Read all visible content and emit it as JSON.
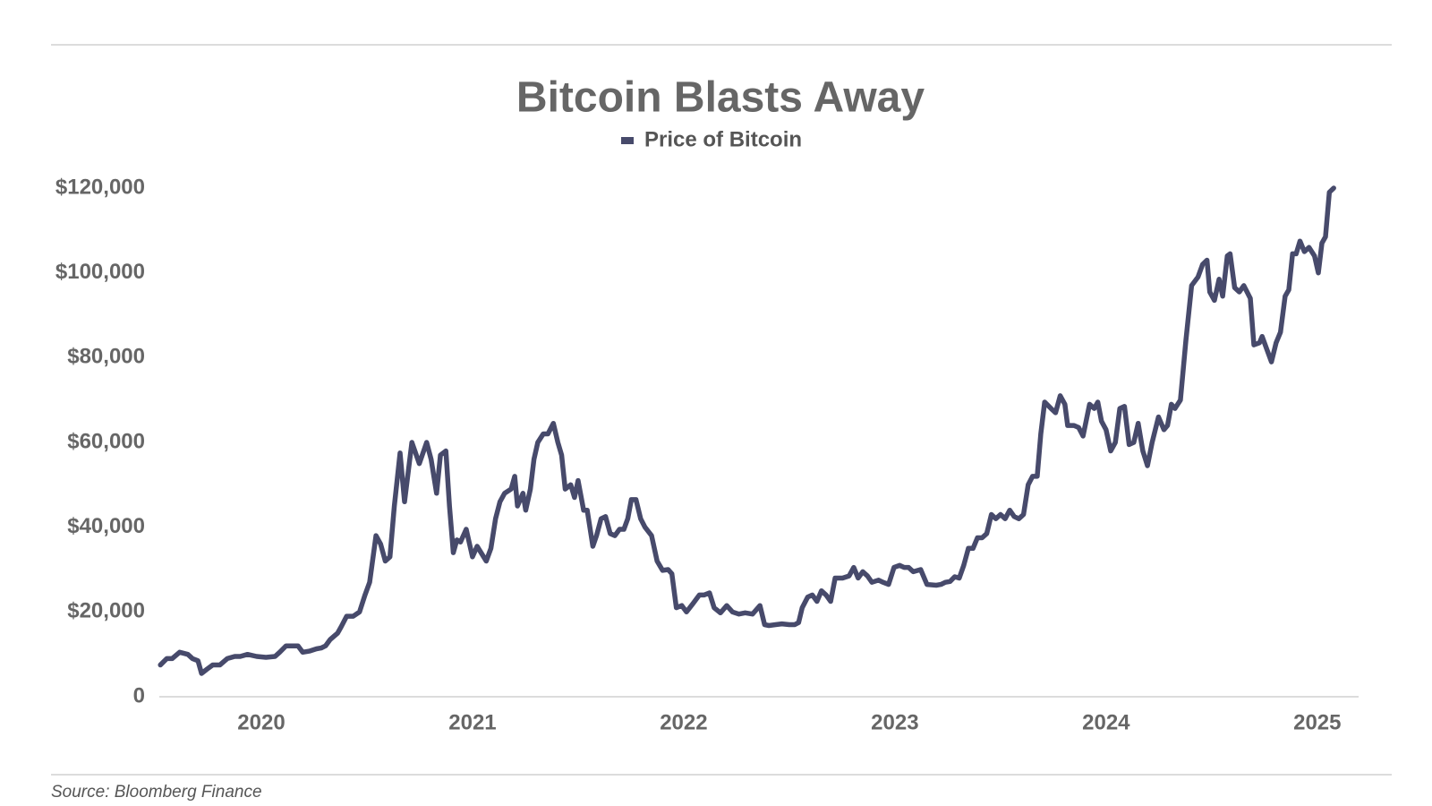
{
  "chart_data": {
    "type": "line",
    "title": "Bitcoin Blasts Away",
    "source": "Source: Bloomberg Finance",
    "x": [
      2020.022,
      2020.052,
      2020.078,
      2020.113,
      2020.152,
      2020.174,
      2020.2,
      2020.217,
      2020.243,
      2020.27,
      2020.304,
      2020.339,
      2020.374,
      2020.4,
      2020.435,
      2020.478,
      2020.522,
      2020.565,
      2020.587,
      2020.617,
      2020.674,
      2020.696,
      2020.73,
      2020.761,
      2020.783,
      2020.804,
      2020.826,
      2020.861,
      2020.878,
      2020.904,
      2020.935,
      2020.965,
      2020.991,
      2021.013,
      2021.043,
      2021.065,
      2021.087,
      2021.109,
      2021.13,
      2021.157,
      2021.178,
      2021.213,
      2021.248,
      2021.283,
      2021.304,
      2021.33,
      2021.348,
      2021.374,
      2021.391,
      2021.409,
      2021.426,
      2021.443,
      2021.47,
      2021.5,
      2021.522,
      2021.565,
      2021.587,
      2021.609,
      2021.63,
      2021.652,
      2021.683,
      2021.7,
      2021.713,
      2021.739,
      2021.752,
      2021.774,
      2021.791,
      2021.809,
      2021.835,
      2021.857,
      2021.883,
      2021.904,
      2021.922,
      2021.939,
      2021.965,
      2021.983,
      2022.0,
      2022.026,
      2022.043,
      2022.07,
      2022.087,
      2022.109,
      2022.13,
      2022.152,
      2022.174,
      2022.196,
      2022.217,
      2022.235,
      2022.252,
      2022.274,
      2022.296,
      2022.317,
      2022.348,
      2022.374,
      2022.4,
      2022.426,
      2022.444,
      2022.465,
      2022.491,
      2022.513,
      2022.544,
      2022.574,
      2022.596,
      2022.622,
      2022.644,
      2022.674,
      2022.704,
      2022.731,
      2022.761,
      2022.791,
      2022.826,
      2022.861,
      2022.883,
      2022.904,
      2022.935,
      2022.965,
      2023.0,
      2023.026,
      2023.044,
      2023.061,
      2023.087,
      2023.109,
      2023.131,
      2023.152,
      2023.174,
      2023.196,
      2023.217,
      2023.252,
      2023.283,
      2023.305,
      2023.326,
      2023.348,
      2023.37,
      2023.391,
      2023.422,
      2023.444,
      2023.47,
      2023.496,
      2023.522,
      2023.544,
      2023.565,
      2023.587,
      2023.622,
      2023.652,
      2023.696,
      2023.718,
      2023.739,
      2023.761,
      2023.783,
      2023.805,
      2023.826,
      2023.848,
      2023.87,
      2023.891,
      2023.913,
      2023.935,
      2023.957,
      2023.978,
      2024.0,
      2024.022,
      2024.044,
      2024.065,
      2024.087,
      2024.109,
      2024.131,
      2024.152,
      2024.174,
      2024.191,
      2024.209,
      2024.239,
      2024.261,
      2024.283,
      2024.305,
      2024.318,
      2024.348,
      2024.37,
      2024.391,
      2024.422,
      2024.444,
      2024.461,
      2024.478,
      2024.5,
      2024.522,
      2024.544,
      2024.565,
      2024.587,
      2024.609,
      2024.631,
      2024.652,
      2024.674,
      2024.696,
      2024.718,
      2024.748,
      2024.774,
      2024.791,
      2024.809,
      2024.826,
      2024.852,
      2024.878,
      2024.905,
      2024.935,
      2024.957,
      2024.978,
      2024.991,
      2025.013,
      2025.035,
      2025.052,
      2025.074,
      2025.087,
      2025.109,
      2025.131,
      2025.152,
      2025.183,
      2025.2,
      2025.226,
      2025.239,
      2025.261,
      2025.283,
      2025.305,
      2025.326,
      2025.348,
      2025.365,
      2025.383,
      2025.4,
      2025.418,
      2025.439,
      2025.461,
      2025.487,
      2025.505,
      2025.522,
      2025.539,
      2025.557,
      2025.578
    ],
    "series": [
      {
        "name": "Price of Bitcoin",
        "color": "#474a6b",
        "values": [
          7500,
          9000,
          9000,
          10500,
          10000,
          9000,
          8500,
          5500,
          6500,
          7500,
          7500,
          9000,
          9500,
          9500,
          10000,
          9500,
          9300,
          9500,
          10500,
          12000,
          12000,
          10500,
          10800,
          11300,
          11500,
          12000,
          13500,
          15000,
          16500,
          19000,
          19000,
          20000,
          24000,
          27000,
          38000,
          36000,
          32000,
          33000,
          45000,
          57500,
          46000,
          60000,
          55000,
          60000,
          56000,
          48000,
          57000,
          58000,
          45000,
          34000,
          37000,
          36500,
          39500,
          33000,
          35500,
          32000,
          35000,
          42000,
          46000,
          48000,
          49000,
          52000,
          45000,
          48000,
          44000,
          49000,
          56000,
          60000,
          62000,
          62000,
          64500,
          60000,
          57000,
          49000,
          50000,
          47000,
          51000,
          44000,
          44000,
          35500,
          38000,
          42000,
          42500,
          38500,
          38000,
          39500,
          39500,
          42000,
          46500,
          46500,
          42000,
          40000,
          38000,
          32000,
          29800,
          30000,
          29000,
          21000,
          21500,
          20000,
          22000,
          24000,
          24000,
          24500,
          21000,
          19800,
          21500,
          20000,
          19500,
          19800,
          19500,
          21500,
          17000,
          16800,
          17000,
          17200,
          17000,
          17000,
          17500,
          21000,
          23500,
          24000,
          22500,
          25000,
          24000,
          22500,
          28000,
          28000,
          28500,
          30500,
          28000,
          29500,
          28500,
          27000,
          27500,
          27000,
          26500,
          30500,
          31000,
          30500,
          30500,
          29500,
          30000,
          26500,
          26300,
          26500,
          27000,
          27200,
          28300,
          28000,
          31000,
          35000,
          35000,
          37500,
          37500,
          38500,
          43000,
          42000,
          43000,
          42000,
          44000,
          42500,
          42000,
          43000,
          50000,
          52000,
          52000,
          62000,
          69500,
          68000,
          67000,
          71000,
          69000,
          64000,
          64000,
          63500,
          61500,
          69000,
          68000,
          69500,
          65000,
          63000,
          58000,
          60000,
          68000,
          68500,
          59500,
          60000,
          64500,
          58000,
          54500,
          60000,
          66000,
          63000,
          64000,
          69000,
          68000,
          70000,
          84000,
          97000,
          99000,
          102000,
          103000,
          95500,
          93500,
          98500,
          94500,
          104000,
          104500,
          96500,
          95500,
          97000,
          94000,
          83000,
          83500,
          85000,
          82000,
          79000,
          83500,
          86000,
          94500,
          96000,
          104500,
          104500,
          107500,
          105000,
          106000,
          104000,
          100000,
          107000,
          108500,
          119000,
          120000
        ]
      }
    ],
    "xlim": [
      2020,
      2025.7
    ],
    "xticks": [
      {
        "value": 2020.5,
        "label": "2020"
      },
      {
        "value": 2021.5,
        "label": "2021"
      },
      {
        "value": 2022.5,
        "label": "2022"
      },
      {
        "value": 2023.5,
        "label": "2023"
      },
      {
        "value": 2024.5,
        "label": "2024"
      },
      {
        "value": 2025.5,
        "label": "2025"
      }
    ],
    "ylim": [
      0,
      120000
    ],
    "yticks": [
      0,
      {
        "value": 20000,
        "label": "$20,000"
      },
      {
        "value": 40000,
        "label": "$40,000"
      },
      {
        "value": 60000,
        "label": "$60,000"
      },
      {
        "value": 80000,
        "label": "$80,000"
      },
      {
        "value": 100000,
        "label": "$100,000"
      },
      {
        "value": 120000,
        "label": "$120,000"
      }
    ],
    "grid": false,
    "legend": "top"
  }
}
